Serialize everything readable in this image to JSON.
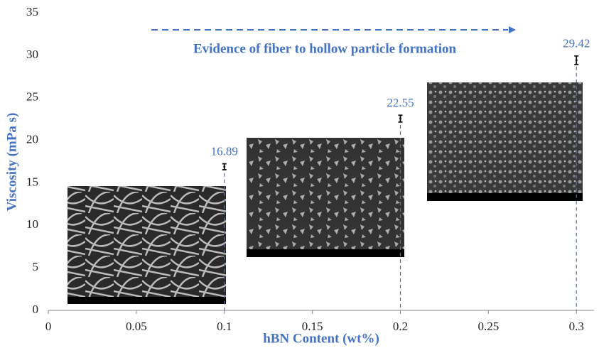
{
  "chart_data": {
    "type": "scatter",
    "x": [
      0.1,
      0.2,
      0.3
    ],
    "values": [
      16.89,
      22.55,
      29.42
    ],
    "errors": [
      0.35,
      0.4,
      0.5
    ],
    "color": "#111111",
    "guide_color": "#4472c4",
    "xlabel": "hBN Content (wt%)",
    "ylabel": "Viscosity (mPa s)",
    "annotation": "Evidence of fiber to hollow particle formation",
    "xlim": [
      0,
      0.31
    ],
    "ylim": [
      0,
      35
    ],
    "xticks": [
      0,
      0.05,
      0.1,
      0.15,
      0.2,
      0.25,
      0.3
    ],
    "yticks": [
      0,
      5,
      10,
      15,
      20,
      25,
      30,
      35
    ],
    "grid": false
  }
}
